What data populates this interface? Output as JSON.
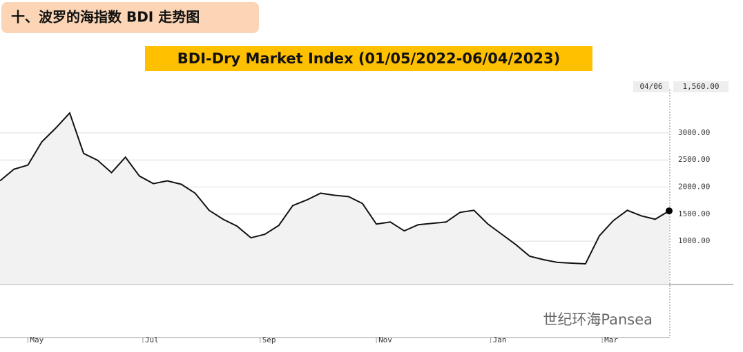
{
  "header": {
    "title": "十、波罗的海指数 BDI 走势图"
  },
  "watermark": "世纪环海Pansea",
  "chart_data": {
    "type": "line",
    "title": "BDI-Dry Market Index (01/05/2022-06/04/2023)",
    "color": "#111111",
    "fill": "#f2f2f2",
    "grid": true,
    "values": [
      2114,
      2329,
      2405,
      2835,
      3089,
      3367,
      2620,
      2494,
      2266,
      2550,
      2203,
      2063,
      2114,
      2051,
      1886,
      1570,
      1405,
      1278,
      1063,
      1127,
      1291,
      1658,
      1760,
      1886,
      1848,
      1823,
      1696,
      1316,
      1354,
      1190,
      1304,
      1329,
      1354,
      1532,
      1570,
      1316,
      1127,
      937,
      722,
      658,
      608,
      595,
      582,
      1101,
      1380,
      1570,
      1468,
      1405,
      1560
    ],
    "xlim": [
      0,
      48
    ],
    "xticks": [
      {
        "value": 2,
        "label": "May"
      },
      {
        "value": 10.25,
        "label": "Jul"
      },
      {
        "value": 18.66,
        "label": "Sep"
      },
      {
        "value": 27,
        "label": "Nov"
      },
      {
        "value": 35.2,
        "label": "Jan"
      },
      {
        "value": 43.2,
        "label": "Mar"
      }
    ],
    "ylim": [
      200,
      3800
    ],
    "yticks": [
      {
        "value": 1000,
        "label": "1000.00"
      },
      {
        "value": 1500,
        "label": "1500.00"
      },
      {
        "value": 2000,
        "label": "2000.00"
      },
      {
        "value": 2500,
        "label": "2500.00"
      },
      {
        "value": 3000,
        "label": "3000.00"
      }
    ],
    "last_point": {
      "date": "04/06",
      "value_label": "1,560.00"
    }
  }
}
